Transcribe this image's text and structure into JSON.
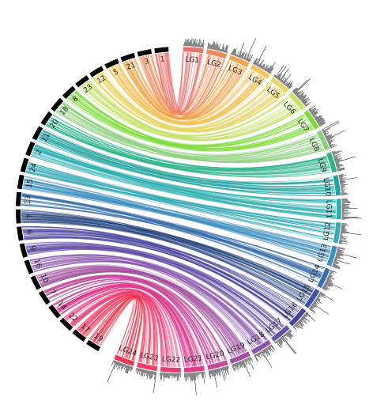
{
  "left_chromosomes": [
    "1",
    "3",
    "21",
    "5",
    "12",
    "23",
    "8",
    "18",
    "20",
    "11",
    "2",
    "24",
    "15",
    "13",
    "4",
    "6",
    "9",
    "16",
    "10",
    "7",
    "14",
    "22",
    "17",
    "19"
  ],
  "linkage_groups": [
    "LG1",
    "LG2",
    "LG3",
    "LG4",
    "LG5",
    "LG6",
    "LG7",
    "LG8",
    "LG9",
    "LG10",
    "LG11",
    "LG12",
    "LG13",
    "LG14",
    "LG15",
    "LG16",
    "LG17",
    "LG18",
    "LG19",
    "LG20",
    "LG21",
    "LG22",
    "LG23",
    "LG24"
  ],
  "lg_colors": [
    "#e8736f",
    "#ef8a5a",
    "#f0a650",
    "#f3c35c",
    "#e8d66a",
    "#c9e26e",
    "#7edc3a",
    "#8ccf7c",
    "#2eb38a",
    "#22a3a0",
    "#2fb0b0",
    "#36a9b6",
    "#3f8fbf",
    "#3a6faa",
    "#3a52a0",
    "#45439a",
    "#6650a6",
    "#8a55ab",
    "#a0509f",
    "#c3489a",
    "#db3d8d",
    "#e93977",
    "#ef3f63",
    "#e8384e"
  ],
  "link_colors": {
    "1": "#e8736f",
    "3": "#ef8a5a",
    "21": "#f0a650",
    "5": "#f3c35c",
    "12": "#e8d66a",
    "23": "#c9e26e",
    "8": "#7edc3a",
    "18": "#8ccf7c",
    "20": "#2eb38a",
    "11": "#22a3a0",
    "2": "#2fb0b0",
    "24": "#36a9b6",
    "15": "#3f8fbf",
    "13": "#3a6faa",
    "4": "#1f3f7a",
    "6": "#45439a",
    "9": "#6650a6",
    "16": "#8a55ab",
    "10": "#a0509f",
    "7": "#c3489a",
    "14": "#db3d8d",
    "22": "#e93977",
    "17": "#ef3f63",
    "19": "#e8384e"
  },
  "left_ideogram_color": "#000000"
}
